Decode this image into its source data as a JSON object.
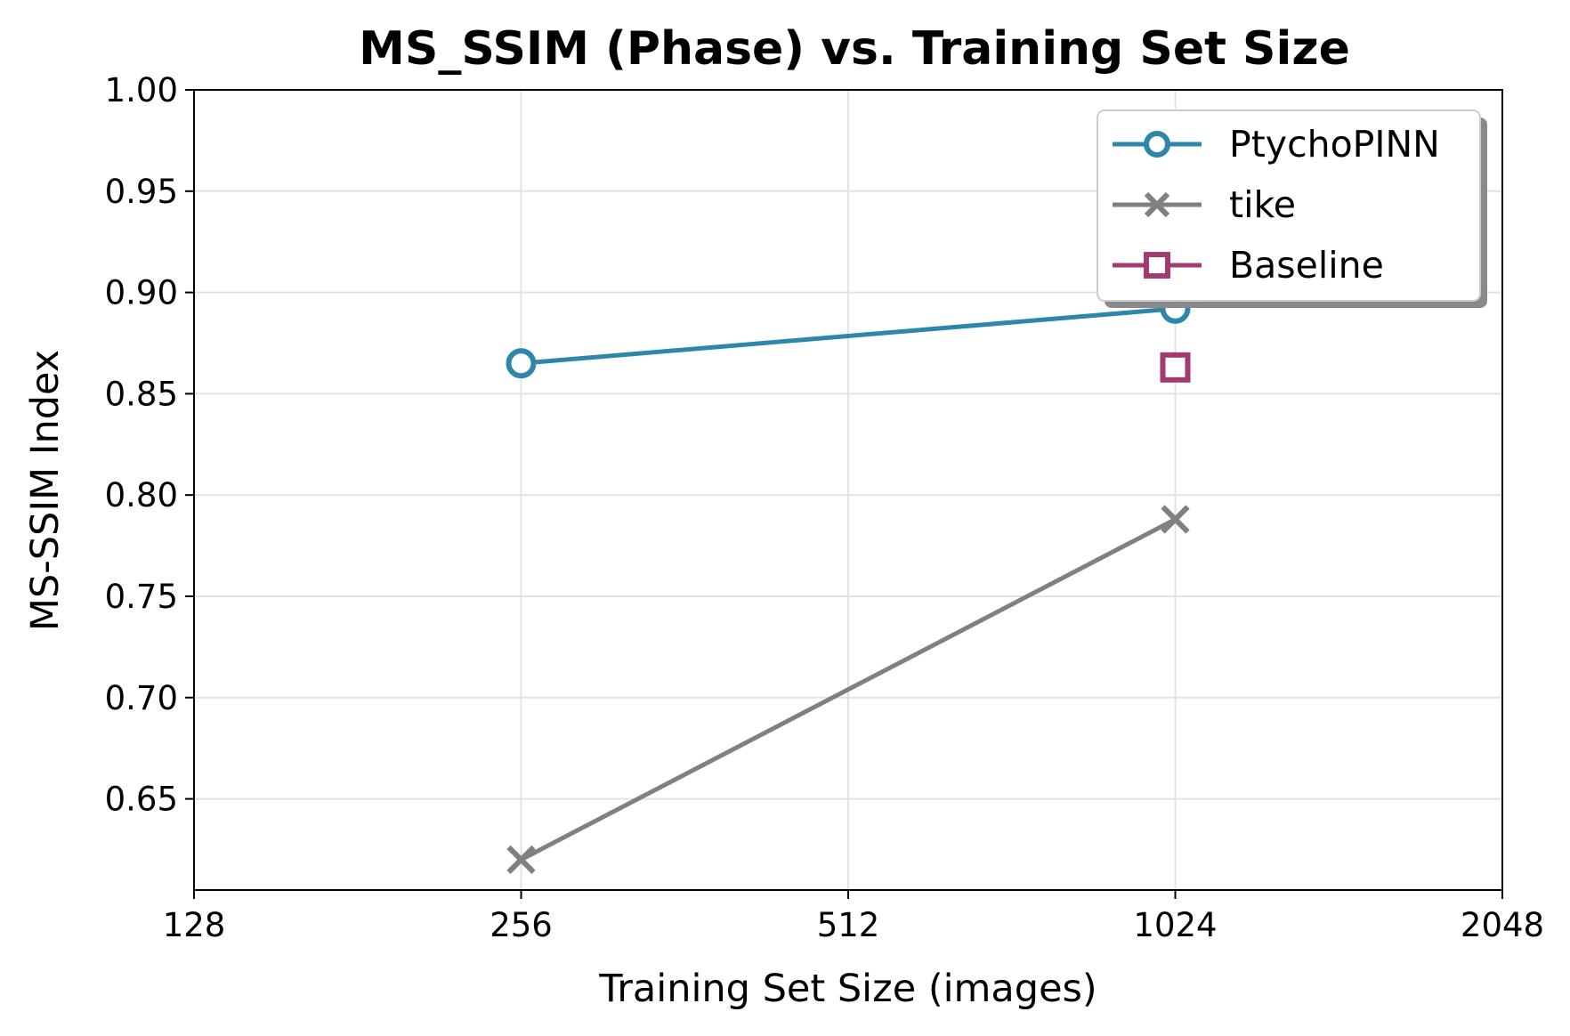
{
  "chart_data": {
    "type": "line",
    "title": "MS_SSIM (Phase) vs. Training Set Size",
    "xlabel": "Training Set Size (images)",
    "ylabel": "MS-SSIM Index",
    "xscale": "log2",
    "xlim": [
      128,
      2048
    ],
    "ylim": [
      0.605,
      1.0
    ],
    "x_ticks": [
      128,
      256,
      512,
      1024,
      2048
    ],
    "x_tick_labels": [
      "128",
      "256",
      "512",
      "1024",
      "2048"
    ],
    "y_ticks": [
      0.65,
      0.7,
      0.75,
      0.8,
      0.85,
      0.9,
      0.95,
      1.0
    ],
    "y_tick_labels": [
      "0.65",
      "0.70",
      "0.75",
      "0.80",
      "0.85",
      "0.90",
      "0.95",
      "1.00"
    ],
    "grid": true,
    "legend_position": "top-right",
    "series": [
      {
        "name": "PtychoPINN",
        "x": [
          256,
          1024
        ],
        "y": [
          0.865,
          0.892
        ],
        "color": "#2E86AB",
        "marker": "circle"
      },
      {
        "name": "tike",
        "x": [
          256,
          1024
        ],
        "y": [
          0.62,
          0.788
        ],
        "color": "#808080",
        "marker": "x"
      },
      {
        "name": "Baseline",
        "x": [
          1024
        ],
        "y": [
          0.863
        ],
        "color": "#A23B72",
        "marker": "square"
      }
    ]
  }
}
